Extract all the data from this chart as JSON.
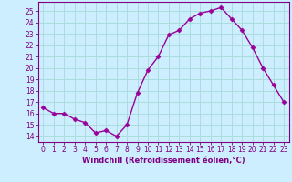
{
  "x": [
    0,
    1,
    2,
    3,
    4,
    5,
    6,
    7,
    8,
    9,
    10,
    11,
    12,
    13,
    14,
    15,
    16,
    17,
    18,
    19,
    20,
    21,
    22,
    23
  ],
  "y": [
    16.5,
    16.0,
    16.0,
    15.5,
    15.2,
    14.3,
    14.5,
    14.0,
    15.0,
    17.8,
    19.8,
    21.0,
    22.9,
    23.3,
    24.3,
    24.8,
    25.0,
    25.3,
    24.3,
    23.3,
    21.8,
    20.0,
    18.5,
    17.0
  ],
  "line_color": "#990099",
  "marker": "D",
  "marker_size": 2.5,
  "bg_color": "#cceeff",
  "grid_color": "#aadddd",
  "xlabel": "Windchill (Refroidissement éolien,°C)",
  "ylabel_ticks": [
    14,
    15,
    16,
    17,
    18,
    19,
    20,
    21,
    22,
    23,
    24,
    25
  ],
  "xlim": [
    -0.5,
    23.5
  ],
  "ylim": [
    13.5,
    25.8
  ],
  "label_color": "#800080",
  "tick_color": "#800080",
  "tick_fontsize": 5.5,
  "xlabel_fontsize": 6.0,
  "linewidth": 1.0
}
